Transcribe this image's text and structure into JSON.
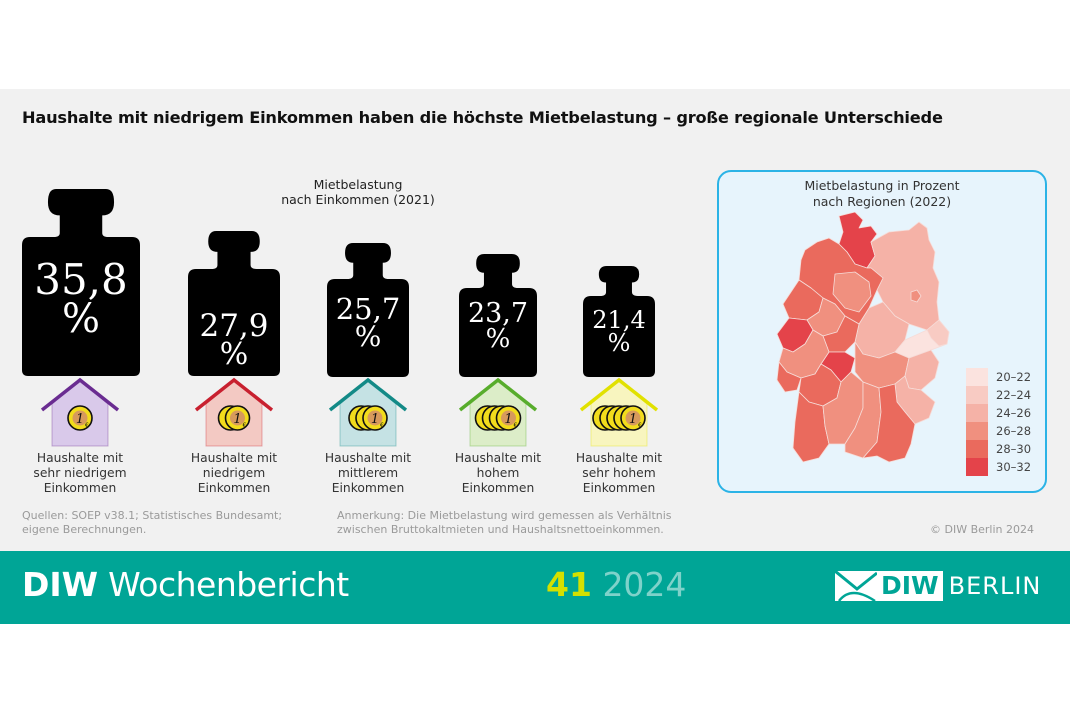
{
  "title": "Haushalte mit niedrigem Einkommen haben die höchste Mietbelastung – große regionale Unterschiede",
  "left_chart": {
    "subtitle_line1": "Mietbelastung",
    "subtitle_line2": "nach Einkommen (2021)",
    "groups": [
      {
        "value": "35,8",
        "unit": "%",
        "label_l1": "Haushalte mit",
        "label_l2": "sehr niedrigem",
        "label_l3": "Einkommen",
        "house_color": "#6a2c91",
        "house_fill": "#d9c9ea",
        "coins": 1
      },
      {
        "value": "27,9",
        "unit": "%",
        "label_l1": "Haushalte mit",
        "label_l2": "niedrigem",
        "label_l3": "Einkommen",
        "house_color": "#c8202f",
        "house_fill": "#f3c9c3",
        "coins": 2
      },
      {
        "value": "25,7",
        "unit": "%",
        "label_l1": "Haushalte mit",
        "label_l2": "mittlerem",
        "label_l3": "Einkommen",
        "house_color": "#138a87",
        "house_fill": "#c5e2e4",
        "coins": 3
      },
      {
        "value": "23,7",
        "unit": "%",
        "label_l1": "Haushalte mit",
        "label_l2": "hohem",
        "label_l3": "Einkommen",
        "house_color": "#58ad2c",
        "house_fill": "#dcedc8",
        "coins": 4
      },
      {
        "value": "21,4",
        "unit": "%",
        "label_l1": "Haushalte mit",
        "label_l2": "sehr hohem",
        "label_l3": "Einkommen",
        "house_color": "#e1e100",
        "house_fill": "#f8f5bf",
        "coins": 5
      }
    ]
  },
  "map": {
    "title_line1": "Mietbelastung in Prozent",
    "title_line2": "nach Regionen (2022)",
    "legend": [
      {
        "label": "20–22",
        "color": "#fbe3df"
      },
      {
        "label": "22–24",
        "color": "#f8cbc3"
      },
      {
        "label": "24–26",
        "color": "#f5b2a7"
      },
      {
        "label": "26–28",
        "color": "#f0907f"
      },
      {
        "label": "28–30",
        "color": "#ea6a5d"
      },
      {
        "label": "30–32",
        "color": "#e4434a"
      }
    ]
  },
  "chart_data": [
    {
      "type": "bar",
      "title": "Mietbelastung nach Einkommen (2021)",
      "categories": [
        "Haushalte mit sehr niedrigem Einkommen",
        "Haushalte mit niedrigem Einkommen",
        "Haushalte mit mittlerem Einkommen",
        "Haushalte mit hohem Einkommen",
        "Haushalte mit sehr hohem Einkommen"
      ],
      "values": [
        35.8,
        27.9,
        25.7,
        23.7,
        21.4
      ],
      "ylabel": "Mietbelastung (%)",
      "xlabel": ""
    },
    {
      "type": "heatmap",
      "title": "Mietbelastung in Prozent nach Regionen (2022)",
      "legend_bins": [
        "20–22",
        "22–24",
        "24–26",
        "26–28",
        "28–30",
        "30–32"
      ],
      "regions_summary": {
        "north (Hamburg/Schleswig-Holstein)": "30–32",
        "northwest": "28–30",
        "east": "22–24",
        "southeast Saxony": "20–22",
        "Frankfurt/Rhein-Main": "30–32",
        "Cologne/Rhineland": "30–32",
        "Munich/Upper Bavaria": "28–30"
      }
    }
  ],
  "footer": {
    "source_line1": "Quellen: SOEP v38.1; Statistisches Bundesamt;",
    "source_line2": "eigene Berechnungen.",
    "note_line1": "Anmerkung: Die Mietbelastung wird gemessen als Verhältnis",
    "note_line2": "zwischen Bruttokaltmieten und Haushaltsnettoeinkommen.",
    "copyright": "© DIW Berlin 2024"
  },
  "band": {
    "brand_bold": "DIW",
    "brand_light": " Wochenbericht",
    "issue_number": "41",
    "issue_year": "2024",
    "logo_box": "DIW",
    "logo_text": "BERLIN"
  }
}
